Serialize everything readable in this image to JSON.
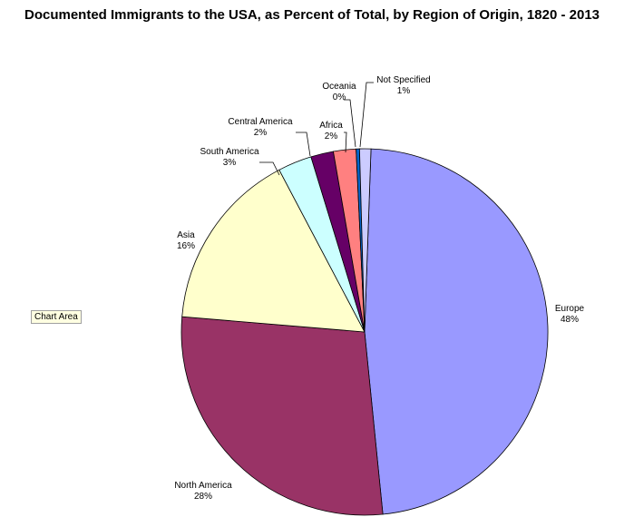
{
  "chart_data": {
    "type": "pie",
    "title": "Documented Immigrants to the USA, as Percent of Total, by Region of Origin, 1820 - 2013",
    "slices": [
      {
        "label": "Europe",
        "value": 48,
        "value_label": "48%",
        "color": "#9999ff"
      },
      {
        "label": "North America",
        "value": 28,
        "value_label": "28%",
        "color": "#993366"
      },
      {
        "label": "Asia",
        "value": 16,
        "value_label": "16%",
        "color": "#ffffcc"
      },
      {
        "label": "South America",
        "value": 3,
        "value_label": "3%",
        "color": "#ccffff"
      },
      {
        "label": "Central America",
        "value": 2,
        "value_label": "2%",
        "color": "#660066"
      },
      {
        "label": "Africa",
        "value": 2,
        "value_label": "2%",
        "color": "#ff8080"
      },
      {
        "label": "Oceania",
        "value": 0.3,
        "value_label": "0%",
        "color": "#0066cc"
      },
      {
        "label": "Not Specified",
        "value": 1,
        "value_label": "1%",
        "color": "#ccccff"
      }
    ]
  },
  "tooltip": {
    "text": "Chart Area"
  }
}
